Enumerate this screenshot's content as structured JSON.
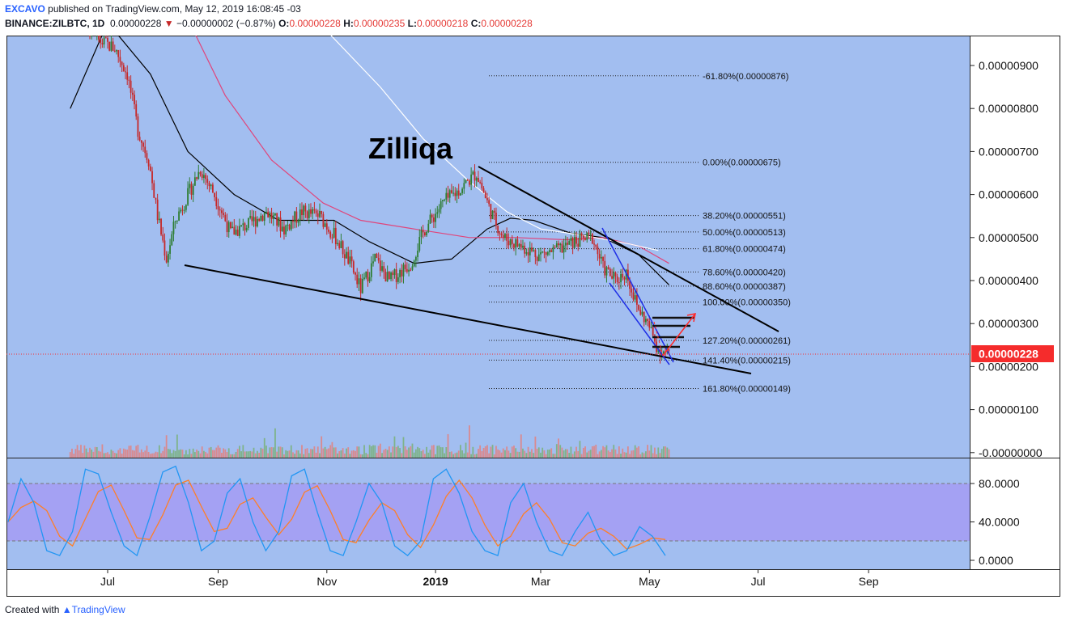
{
  "header": {
    "author": "EXCAVO",
    "published_text": "published on TradingView.com, May 12, 2019 16:08:45 -03",
    "symbol": "BINANCE:ZILBTC, 1D",
    "last": "0.00000228",
    "arrow": "▼",
    "change": "−0.00000002 (−0.87%)",
    "o_label": "O:",
    "o_value": "0.00000228",
    "h_label": "H:",
    "h_value": "0.00000235",
    "l_label": "L:",
    "l_value": "0.00000218",
    "c_label": "C:",
    "c_value": "0.00000228"
  },
  "footer": {
    "created_with": "Created with",
    "brand": "TradingView"
  },
  "colors": {
    "background": "#a2bef0",
    "up": "#2e7d32",
    "down": "#c62828",
    "price_tag": "#f52c2c",
    "stoch_band": "#a4a1f3",
    "stoch_k": "#2196f3",
    "stoch_d": "#ff7f27",
    "ma_short": "#000000",
    "ma_mid": "#e0457b",
    "ma_long": "#ffffff",
    "channel": "#1e2ee6"
  },
  "chart_data": {
    "type": "candlestick",
    "title": "Zilliqa",
    "price_axis": {
      "ticks": [
        "0.00000900",
        "0.00000800",
        "0.00000700",
        "0.00000600",
        "0.00000500",
        "0.00000400",
        "0.00000300",
        "0.00000200",
        "0.00000100",
        "-0.00000000"
      ],
      "values": [
        9,
        8,
        7,
        6,
        5,
        4,
        3,
        2,
        1,
        0
      ],
      "unit_scale": "1e-6 BTC"
    },
    "time_axis": {
      "labels": [
        "Jul",
        "Sep",
        "Nov",
        "2019",
        "Mar",
        "May",
        "Jul",
        "Sep"
      ],
      "dates": [
        "2018-07-01",
        "2018-09-01",
        "2018-11-01",
        "2019-01-01",
        "2019-03-01",
        "2019-05-01",
        "2019-07-01",
        "2019-09-01"
      ]
    },
    "current_price": "0.00000228",
    "fibonacci_levels": [
      {
        "label": "-61.80%(0.00000876)",
        "value": 8.76
      },
      {
        "label": "0.00%(0.00000675)",
        "value": 6.75
      },
      {
        "label": "38.20%(0.00000551)",
        "value": 5.51
      },
      {
        "label": "50.00%(0.00000513)",
        "value": 5.13
      },
      {
        "label": "61.80%(0.00000474)",
        "value": 4.74
      },
      {
        "label": "78.60%(0.00000420)",
        "value": 4.2
      },
      {
        "label": "88.60%(0.00000387)",
        "value": 3.87
      },
      {
        "label": "100.00%(0.00000350)",
        "value": 3.5
      },
      {
        "label": "127.20%(0.00000261)",
        "value": 2.61
      },
      {
        "label": "141.40%(0.00000215)",
        "value": 2.15
      },
      {
        "label": "161.80%(0.00000149)",
        "value": 1.49
      }
    ],
    "price_path": [
      [
        "2018-06-10",
        12
      ],
      [
        "2018-06-18",
        10
      ],
      [
        "2018-06-25",
        9.6
      ],
      [
        "2018-07-05",
        9.4
      ],
      [
        "2018-07-12",
        8.8
      ],
      [
        "2018-07-18",
        7.5
      ],
      [
        "2018-07-24",
        6.8
      ],
      [
        "2018-07-29",
        5.5
      ],
      [
        "2018-08-03",
        4.5
      ],
      [
        "2018-08-08",
        5.4
      ],
      [
        "2018-08-14",
        5.9
      ],
      [
        "2018-08-22",
        6.6
      ],
      [
        "2018-08-30",
        6.0
      ],
      [
        "2018-09-08",
        5.1
      ],
      [
        "2018-09-18",
        5.3
      ],
      [
        "2018-09-28",
        5.6
      ],
      [
        "2018-10-08",
        5.2
      ],
      [
        "2018-10-18",
        5.6
      ],
      [
        "2018-10-28",
        5.5
      ],
      [
        "2018-11-06",
        5.0
      ],
      [
        "2018-11-14",
        4.4
      ],
      [
        "2018-11-20",
        3.8
      ],
      [
        "2018-11-28",
        4.5
      ],
      [
        "2018-12-06",
        4.0
      ],
      [
        "2018-12-18",
        4.4
      ],
      [
        "2018-12-26",
        5.2
      ],
      [
        "2019-01-05",
        5.8
      ],
      [
        "2019-01-14",
        6.1
      ],
      [
        "2019-01-24",
        6.5
      ],
      [
        "2019-02-01",
        5.6
      ],
      [
        "2019-02-08",
        5.0
      ],
      [
        "2019-02-18",
        4.8
      ],
      [
        "2019-02-28",
        4.6
      ],
      [
        "2019-03-10",
        4.7
      ],
      [
        "2019-03-20",
        4.9
      ],
      [
        "2019-03-30",
        5.0
      ],
      [
        "2019-04-05",
        4.3
      ],
      [
        "2019-04-12",
        4.0
      ],
      [
        "2019-04-18",
        4.2
      ],
      [
        "2019-04-24",
        3.4
      ],
      [
        "2019-04-30",
        3.0
      ],
      [
        "2019-05-06",
        2.4
      ],
      [
        "2019-05-12",
        2.28
      ]
    ],
    "moving_averages": [
      {
        "color": "black",
        "path": [
          [
            "2018-06-10",
            8.0
          ],
          [
            "2018-07-01",
            10.0
          ],
          [
            "2018-07-25",
            8.8
          ],
          [
            "2018-08-15",
            7.0
          ],
          [
            "2018-09-10",
            6.0
          ],
          [
            "2018-10-05",
            5.4
          ],
          [
            "2018-11-05",
            5.4
          ],
          [
            "2018-11-25",
            4.9
          ],
          [
            "2018-12-20",
            4.4
          ],
          [
            "2019-01-10",
            4.5
          ],
          [
            "2019-01-30",
            5.2
          ],
          [
            "2019-02-12",
            5.45
          ],
          [
            "2019-02-25",
            5.4
          ],
          [
            "2019-03-18",
            5.1
          ],
          [
            "2019-04-05",
            5.0
          ],
          [
            "2019-04-25",
            4.6
          ],
          [
            "2019-05-12",
            3.9
          ]
        ]
      },
      {
        "color": "pink",
        "path": [
          [
            "2018-07-20",
            12
          ],
          [
            "2018-08-10",
            10.5
          ],
          [
            "2018-09-05",
            8.3
          ],
          [
            "2018-10-01",
            6.8
          ],
          [
            "2018-10-30",
            5.8
          ],
          [
            "2018-11-20",
            5.4
          ],
          [
            "2018-12-20",
            5.2
          ],
          [
            "2019-01-20",
            5.0
          ],
          [
            "2019-02-15",
            5.0
          ],
          [
            "2019-03-15",
            4.95
          ],
          [
            "2019-04-05",
            5.0
          ],
          [
            "2019-04-25",
            4.8
          ],
          [
            "2019-05-12",
            4.4
          ]
        ]
      },
      {
        "color": "white",
        "path": [
          [
            "2018-09-01",
            12
          ],
          [
            "2018-10-05",
            11.2
          ],
          [
            "2018-11-01",
            9.8
          ],
          [
            "2018-12-01",
            8.5
          ],
          [
            "2018-12-25",
            7.3
          ],
          [
            "2019-01-20",
            6.3
          ],
          [
            "2019-02-10",
            5.6
          ],
          [
            "2019-03-01",
            5.2
          ],
          [
            "2019-03-25",
            5.05
          ],
          [
            "2019-04-20",
            4.85
          ],
          [
            "2019-05-06",
            4.7
          ]
        ]
      }
    ],
    "stochastic": {
      "ticks": [
        "80.0000",
        "40.0000",
        "0.0000"
      ],
      "tick_values": [
        80,
        40,
        0
      ],
      "upper": 80,
      "lower": 20,
      "points": [
        40,
        85,
        60,
        10,
        5,
        30,
        95,
        90,
        50,
        15,
        5,
        45,
        92,
        98,
        60,
        10,
        20,
        70,
        85,
        40,
        10,
        30,
        88,
        95,
        50,
        10,
        5,
        40,
        80,
        60,
        15,
        5,
        20,
        85,
        95,
        70,
        30,
        10,
        5,
        60,
        80,
        40,
        10,
        5,
        30,
        50,
        20,
        5,
        10,
        35,
        25,
        5
      ]
    }
  }
}
